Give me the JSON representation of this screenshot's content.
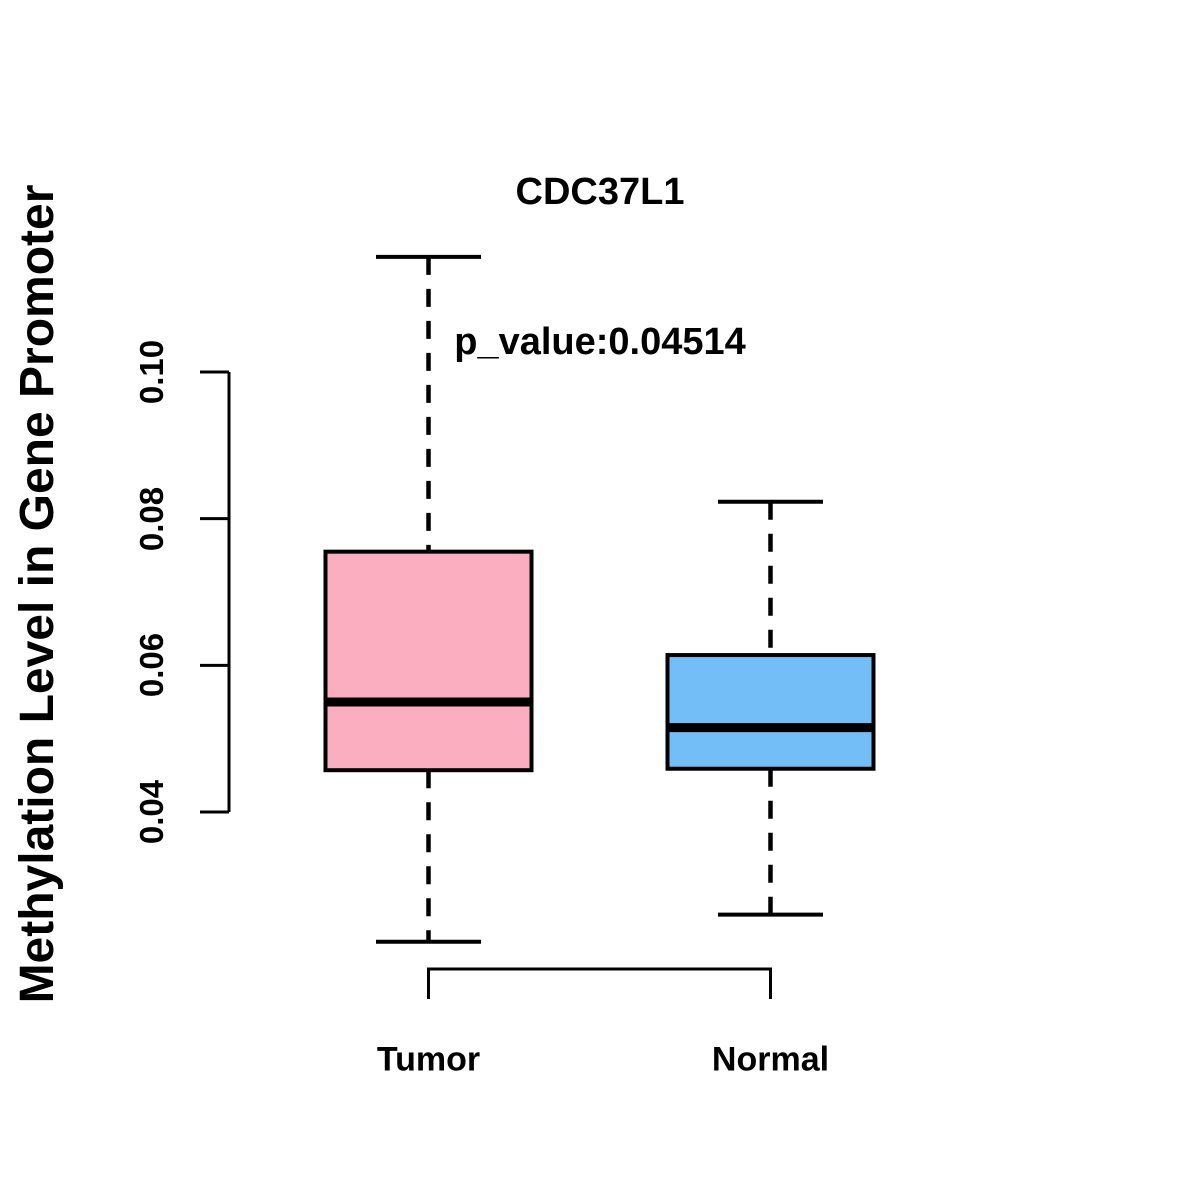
{
  "title": {
    "line1": "CDC37L1",
    "line2": "p_value:0.04514"
  },
  "y_axis": {
    "label": "Methylation Level in Gene Promoter",
    "ticks": [
      0.04,
      0.06,
      0.08,
      0.1
    ],
    "tick_labels": [
      "0.04",
      "0.06",
      "0.08",
      "0.10"
    ]
  },
  "x_axis": {
    "categories": [
      "Tumor",
      "Normal"
    ]
  },
  "colors": {
    "tumor_fill": "#FCAEC1",
    "normal_fill": "#73BEF6",
    "stroke": "#000000",
    "background": "#FFFFFF"
  },
  "chart_data": {
    "type": "boxplot",
    "title": "CDC37L1",
    "subtitle": "p_value:0.04514",
    "gene": "CDC37L1",
    "p_value": 0.04514,
    "ylabel": "Methylation Level in Gene Promoter",
    "xlabel": "",
    "categories": [
      "Tumor",
      "Normal"
    ],
    "yticks": [
      0.04,
      0.06,
      0.08,
      0.1
    ],
    "ylim": [
      0.04,
      0.1
    ],
    "grid": false,
    "legend": "none",
    "series": [
      {
        "name": "Tumor",
        "fill": "#FCAEC1",
        "whisker_low": 0.0223,
        "q1": 0.0457,
        "median": 0.055,
        "q3": 0.0755,
        "whisker_high": 0.1157
      },
      {
        "name": "Normal",
        "fill": "#73BEF6",
        "whisker_low": 0.026,
        "q1": 0.0459,
        "median": 0.0515,
        "q3": 0.0614,
        "whisker_high": 0.0823
      }
    ]
  }
}
